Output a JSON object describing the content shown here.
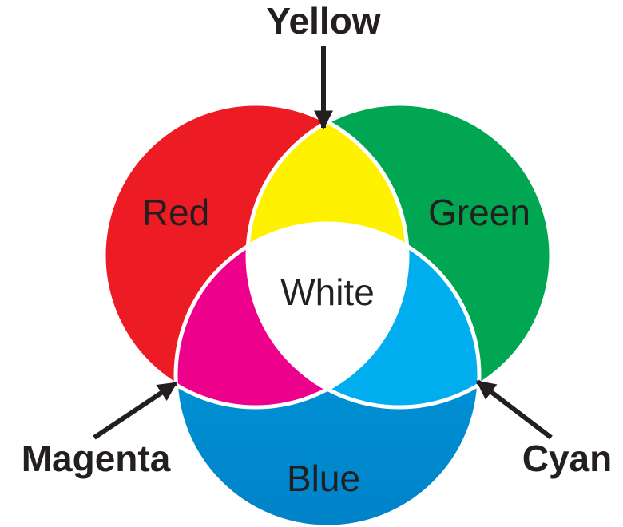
{
  "regions": [
    {
      "label": "Red"
    },
    {
      "label": "Green"
    },
    {
      "label": "Blue"
    },
    {
      "label": "White"
    }
  ],
  "callouts": [
    {
      "label": "Yellow"
    },
    {
      "label": "Magenta"
    },
    {
      "label": "Cyan"
    }
  ]
}
